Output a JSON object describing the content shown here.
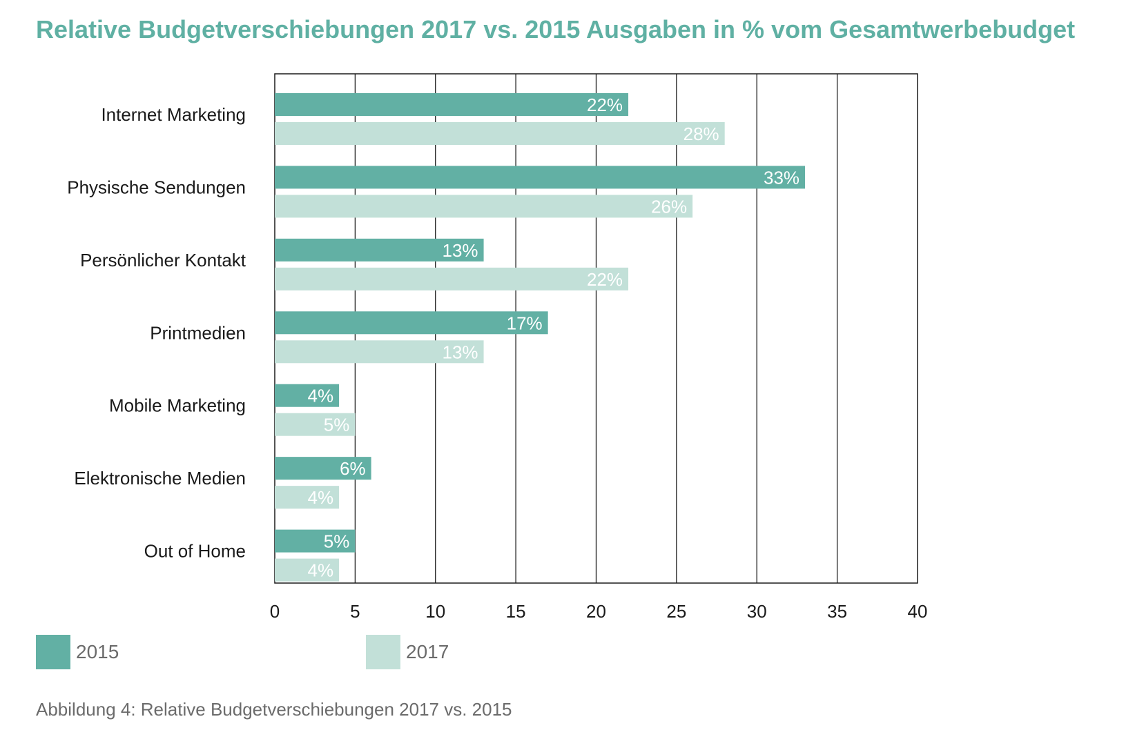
{
  "chart_data": {
    "type": "bar",
    "orientation": "horizontal",
    "title": "Relative Budgetverschiebungen 2017 vs. 2015 Ausgaben in % vom Gesamtwerbebudget",
    "categories": [
      "Internet Marketing",
      "Physische Sendungen",
      "Persönlicher Kontakt",
      "Printmedien",
      "Mobile Marketing",
      "Elektronische Medien",
      "Out of Home"
    ],
    "series": [
      {
        "name": "2015",
        "values": [
          22,
          33,
          13,
          17,
          4,
          6,
          5
        ],
        "labels": [
          "22%",
          "33%",
          "13%",
          "17%",
          "4%",
          "6%",
          "5%"
        ],
        "color": "#62b0a4"
      },
      {
        "name": "2017",
        "values": [
          28,
          26,
          22,
          13,
          5,
          4,
          4
        ],
        "labels": [
          "28%",
          "26%",
          "22%",
          "13%",
          "5%",
          "4%",
          "4%"
        ],
        "color": "#c2e0d8"
      }
    ],
    "xlim": [
      0,
      40
    ],
    "xticks": [
      0,
      5,
      10,
      15,
      20,
      25,
      30,
      35,
      40
    ],
    "grid": true,
    "legend": "bottom-left"
  },
  "caption": "Abbildung 4: Relative Budgetverschiebungen 2017 vs. 2015"
}
